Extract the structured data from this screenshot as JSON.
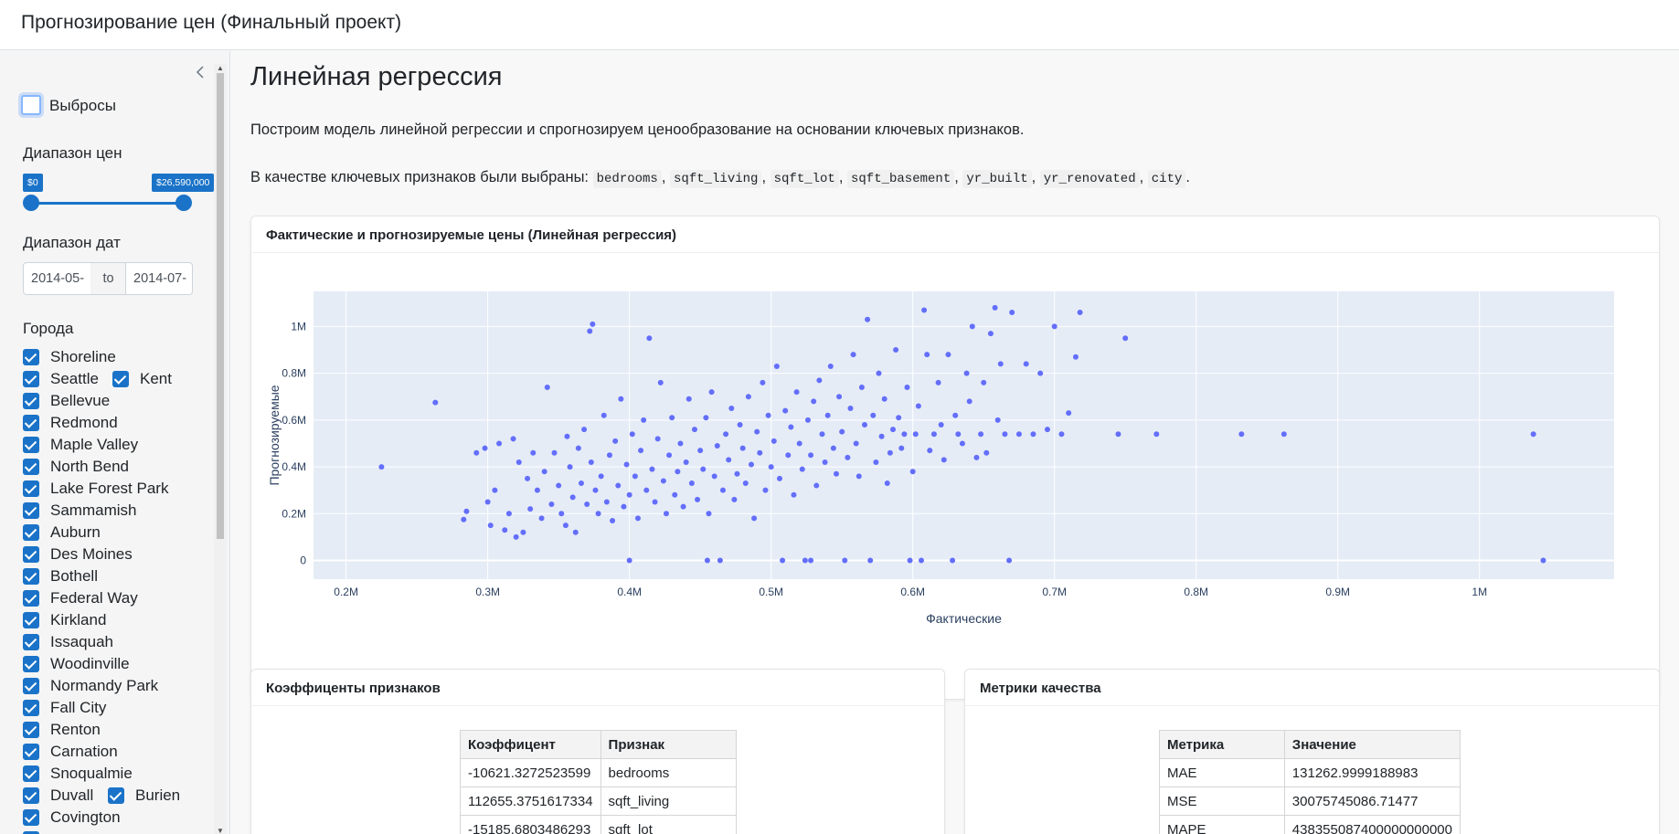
{
  "app": {
    "title": "Прогнозирование цен (Финальный проект)"
  },
  "sidebar": {
    "outliers": {
      "label": "Выбросы",
      "checked": false
    },
    "price_range": {
      "heading": "Диапазон цен",
      "min_label": "$0",
      "max_label": "$26,590,000"
    },
    "date_range": {
      "heading": "Диапазон дат",
      "start": "2014-05-",
      "separator": "to",
      "end": "2014-07-"
    },
    "cities": {
      "heading": "Города",
      "items": [
        {
          "label": "Shoreline",
          "checked": true
        },
        {
          "label": "Seattle",
          "checked": true
        },
        {
          "label": "Kent",
          "checked": true
        },
        {
          "label": "Bellevue",
          "checked": true
        },
        {
          "label": "Redmond",
          "checked": true
        },
        {
          "label": "Maple Valley",
          "checked": true
        },
        {
          "label": "North Bend",
          "checked": true
        },
        {
          "label": "Lake Forest Park",
          "checked": true
        },
        {
          "label": "Sammamish",
          "checked": true
        },
        {
          "label": "Auburn",
          "checked": true
        },
        {
          "label": "Des Moines",
          "checked": true
        },
        {
          "label": "Bothell",
          "checked": true
        },
        {
          "label": "Federal Way",
          "checked": true
        },
        {
          "label": "Kirkland",
          "checked": true
        },
        {
          "label": "Issaquah",
          "checked": true
        },
        {
          "label": "Woodinville",
          "checked": true
        },
        {
          "label": "Normandy Park",
          "checked": true
        },
        {
          "label": "Fall City",
          "checked": true
        },
        {
          "label": "Renton",
          "checked": true
        },
        {
          "label": "Carnation",
          "checked": true
        },
        {
          "label": "Snoqualmie",
          "checked": true
        },
        {
          "label": "Duvall",
          "checked": true
        },
        {
          "label": "Burien",
          "checked": true
        },
        {
          "label": "Covington",
          "checked": true
        }
      ]
    }
  },
  "main": {
    "heading": "Линейная регрессия",
    "intro": "Построим модель линейной регрессии и спрогнозируем ценообразование на основании ключевых признаков.",
    "features_prefix": "В качестве ключевых признаков были выбраны:",
    "features": [
      "bedrooms",
      "sqft_living",
      "sqft_lot",
      "sqft_basement",
      "yr_built",
      "yr_renovated",
      "city"
    ],
    "features_suffix": ".",
    "chart_card_title": "Фактические и прогнозируемые цены (Линейная регрессия)",
    "coef_card": {
      "title": "Коэффиценты признаков",
      "columns": [
        "Коэффицент",
        "Признак"
      ],
      "rows": [
        [
          "-10621.3272523599",
          "bedrooms"
        ],
        [
          "112655.3751617334",
          "sqft_living"
        ],
        [
          "-15185.6803486293",
          "sqft_lot"
        ]
      ]
    },
    "metrics_card": {
      "title": "Метрики качества",
      "columns": [
        "Метрика",
        "Значение"
      ],
      "rows": [
        [
          "MAE",
          "131262.9999188983"
        ],
        [
          "MSE",
          "30075745086.71477"
        ],
        [
          "MAPE",
          "438355087400000000000"
        ]
      ]
    }
  },
  "chart_data": {
    "type": "scatter",
    "title": "Фактические и прогнозируемые цены (Линейная регрессия)",
    "xlabel": "Фактические",
    "ylabel": "Прогнозируемые",
    "xlim": [
      177000,
      1095000
    ],
    "ylim": [
      -80000,
      1150000
    ],
    "x_ticks": [
      {
        "v": 200000,
        "t": "0.2M"
      },
      {
        "v": 300000,
        "t": "0.3M"
      },
      {
        "v": 400000,
        "t": "0.4M"
      },
      {
        "v": 500000,
        "t": "0.5M"
      },
      {
        "v": 600000,
        "t": "0.6M"
      },
      {
        "v": 700000,
        "t": "0.7M"
      },
      {
        "v": 800000,
        "t": "0.8M"
      },
      {
        "v": 900000,
        "t": "0.9M"
      },
      {
        "v": 1000000,
        "t": "1M"
      }
    ],
    "y_ticks": [
      {
        "v": 0,
        "t": "0"
      },
      {
        "v": 200000,
        "t": "0.2M"
      },
      {
        "v": 400000,
        "t": "0.4M"
      },
      {
        "v": 600000,
        "t": "0.6M"
      },
      {
        "v": 800000,
        "t": "0.8M"
      },
      {
        "v": 1000000,
        "t": "1M"
      }
    ],
    "grid": true,
    "marker_color": "#636efa",
    "background": "#e5ecf6",
    "points": [
      [
        225000,
        400000
      ],
      [
        263000,
        675000
      ],
      [
        283000,
        175000
      ],
      [
        285000,
        210000
      ],
      [
        292000,
        460000
      ],
      [
        298000,
        480000
      ],
      [
        300000,
        250000
      ],
      [
        302000,
        150000
      ],
      [
        305000,
        300000
      ],
      [
        308000,
        500000
      ],
      [
        312000,
        130000
      ],
      [
        315000,
        200000
      ],
      [
        318000,
        520000
      ],
      [
        320000,
        100000
      ],
      [
        322000,
        420000
      ],
      [
        325000,
        120000
      ],
      [
        328000,
        350000
      ],
      [
        330000,
        220000
      ],
      [
        332000,
        460000
      ],
      [
        335000,
        300000
      ],
      [
        338000,
        180000
      ],
      [
        340000,
        380000
      ],
      [
        342000,
        740000
      ],
      [
        345000,
        240000
      ],
      [
        347000,
        460000
      ],
      [
        350000,
        320000
      ],
      [
        352000,
        200000
      ],
      [
        355000,
        150000
      ],
      [
        356000,
        530000
      ],
      [
        358000,
        400000
      ],
      [
        360000,
        270000
      ],
      [
        362000,
        120000
      ],
      [
        364000,
        480000
      ],
      [
        366000,
        330000
      ],
      [
        368000,
        560000
      ],
      [
        370000,
        240000
      ],
      [
        372000,
        980000
      ],
      [
        373000,
        420000
      ],
      [
        374000,
        1010000
      ],
      [
        376000,
        300000
      ],
      [
        378000,
        200000
      ],
      [
        380000,
        360000
      ],
      [
        382000,
        620000
      ],
      [
        384000,
        250000
      ],
      [
        386000,
        450000
      ],
      [
        388000,
        170000
      ],
      [
        390000,
        510000
      ],
      [
        392000,
        320000
      ],
      [
        394000,
        690000
      ],
      [
        396000,
        230000
      ],
      [
        398000,
        410000
      ],
      [
        400000,
        280000
      ],
      [
        400000,
        0
      ],
      [
        402000,
        540000
      ],
      [
        404000,
        360000
      ],
      [
        406000,
        180000
      ],
      [
        408000,
        470000
      ],
      [
        410000,
        600000
      ],
      [
        412000,
        300000
      ],
      [
        414000,
        950000
      ],
      [
        416000,
        390000
      ],
      [
        418000,
        250000
      ],
      [
        420000,
        520000
      ],
      [
        422000,
        760000
      ],
      [
        424000,
        340000
      ],
      [
        426000,
        200000
      ],
      [
        428000,
        450000
      ],
      [
        430000,
        610000
      ],
      [
        432000,
        280000
      ],
      [
        434000,
        380000
      ],
      [
        436000,
        500000
      ],
      [
        438000,
        230000
      ],
      [
        440000,
        420000
      ],
      [
        442000,
        690000
      ],
      [
        444000,
        330000
      ],
      [
        446000,
        560000
      ],
      [
        448000,
        260000
      ],
      [
        450000,
        470000
      ],
      [
        452000,
        390000
      ],
      [
        454000,
        610000
      ],
      [
        455000,
        0
      ],
      [
        456000,
        200000
      ],
      [
        458000,
        720000
      ],
      [
        460000,
        360000
      ],
      [
        462000,
        490000
      ],
      [
        464000,
        0
      ],
      [
        466000,
        300000
      ],
      [
        468000,
        540000
      ],
      [
        470000,
        430000
      ],
      [
        472000,
        650000
      ],
      [
        474000,
        260000
      ],
      [
        476000,
        370000
      ],
      [
        478000,
        580000
      ],
      [
        480000,
        480000
      ],
      [
        482000,
        330000
      ],
      [
        484000,
        700000
      ],
      [
        486000,
        410000
      ],
      [
        488000,
        180000
      ],
      [
        490000,
        550000
      ],
      [
        492000,
        460000
      ],
      [
        494000,
        760000
      ],
      [
        496000,
        300000
      ],
      [
        498000,
        620000
      ],
      [
        500000,
        400000
      ],
      [
        502000,
        510000
      ],
      [
        504000,
        830000
      ],
      [
        506000,
        350000
      ],
      [
        508000,
        0
      ],
      [
        510000,
        640000
      ],
      [
        512000,
        450000
      ],
      [
        514000,
        570000
      ],
      [
        516000,
        280000
      ],
      [
        518000,
        720000
      ],
      [
        520000,
        500000
      ],
      [
        522000,
        390000
      ],
      [
        524000,
        0
      ],
      [
        526000,
        600000
      ],
      [
        528000,
        0
      ],
      [
        528000,
        450000
      ],
      [
        530000,
        680000
      ],
      [
        532000,
        320000
      ],
      [
        534000,
        770000
      ],
      [
        536000,
        540000
      ],
      [
        538000,
        420000
      ],
      [
        540000,
        620000
      ],
      [
        542000,
        830000
      ],
      [
        544000,
        480000
      ],
      [
        546000,
        370000
      ],
      [
        548000,
        700000
      ],
      [
        550000,
        550000
      ],
      [
        552000,
        0
      ],
      [
        554000,
        440000
      ],
      [
        556000,
        650000
      ],
      [
        558000,
        880000
      ],
      [
        560000,
        500000
      ],
      [
        562000,
        360000
      ],
      [
        564000,
        740000
      ],
      [
        566000,
        580000
      ],
      [
        568000,
        1030000
      ],
      [
        570000,
        0
      ],
      [
        572000,
        620000
      ],
      [
        574000,
        420000
      ],
      [
        576000,
        800000
      ],
      [
        578000,
        530000
      ],
      [
        580000,
        690000
      ],
      [
        582000,
        330000
      ],
      [
        584000,
        460000
      ],
      [
        586000,
        560000
      ],
      [
        588000,
        900000
      ],
      [
        590000,
        610000
      ],
      [
        592000,
        480000
      ],
      [
        594000,
        540000
      ],
      [
        596000,
        740000
      ],
      [
        598000,
        0
      ],
      [
        600000,
        380000
      ],
      [
        602000,
        540000
      ],
      [
        604000,
        660000
      ],
      [
        606000,
        0
      ],
      [
        608000,
        1070000
      ],
      [
        610000,
        880000
      ],
      [
        612000,
        470000
      ],
      [
        615000,
        540000
      ],
      [
        618000,
        760000
      ],
      [
        620000,
        580000
      ],
      [
        622000,
        430000
      ],
      [
        625000,
        880000
      ],
      [
        628000,
        0
      ],
      [
        630000,
        620000
      ],
      [
        632000,
        540000
      ],
      [
        635000,
        500000
      ],
      [
        638000,
        800000
      ],
      [
        640000,
        680000
      ],
      [
        642000,
        1000000
      ],
      [
        645000,
        440000
      ],
      [
        648000,
        540000
      ],
      [
        650000,
        760000
      ],
      [
        652000,
        460000
      ],
      [
        655000,
        970000
      ],
      [
        658000,
        1080000
      ],
      [
        660000,
        600000
      ],
      [
        662000,
        840000
      ],
      [
        665000,
        540000
      ],
      [
        668000,
        0
      ],
      [
        670000,
        1060000
      ],
      [
        675000,
        540000
      ],
      [
        680000,
        840000
      ],
      [
        685000,
        540000
      ],
      [
        690000,
        800000
      ],
      [
        695000,
        560000
      ],
      [
        700000,
        1000000
      ],
      [
        705000,
        540000
      ],
      [
        710000,
        630000
      ],
      [
        715000,
        870000
      ],
      [
        718000,
        1060000
      ],
      [
        745000,
        540000
      ],
      [
        750000,
        950000
      ],
      [
        772000,
        540000
      ],
      [
        832000,
        540000
      ],
      [
        862000,
        540000
      ],
      [
        1038000,
        540000
      ],
      [
        1045000,
        0
      ]
    ]
  }
}
